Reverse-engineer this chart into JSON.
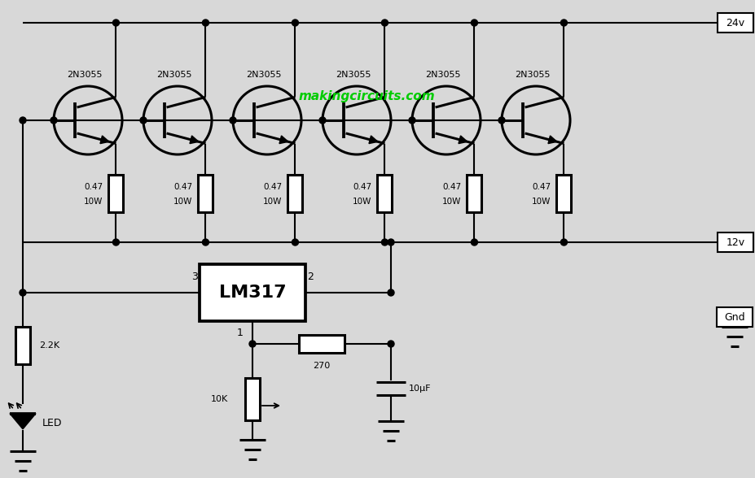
{
  "bg_color": "#d8d8d8",
  "line_color": "#000000",
  "transistor_label": "2N3055",
  "res_emitter_val": "0.47",
  "res_emitter_watt": "10W",
  "lm317_label": "LM317",
  "watermark": "makingcircuits.com",
  "watermark_color": "#00cc00",
  "label_24v": "24v",
  "label_12v": "12v",
  "label_gnd": "Gnd",
  "label_22k": "2.2K",
  "label_led": "LED",
  "label_270": "270",
  "label_10k": "10K",
  "label_10uf": "10μF",
  "figsize": [
    9.27,
    5.88
  ],
  "dpi": 100
}
